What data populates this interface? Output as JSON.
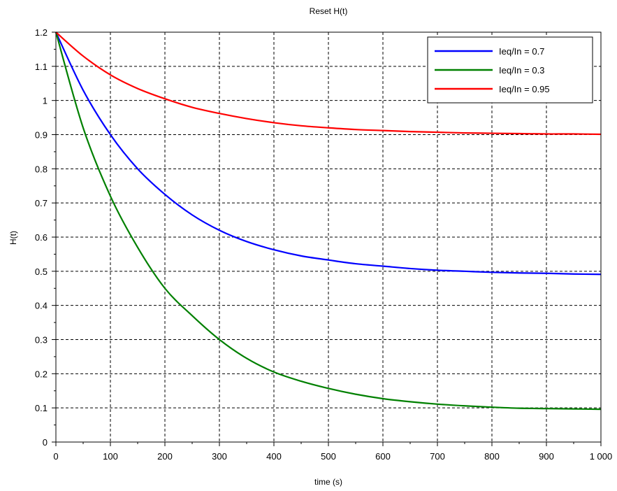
{
  "chart_data": {
    "type": "line",
    "title": "Reset H(t)",
    "xlabel": "time (s)",
    "ylabel": "H(t)",
    "xlim": [
      0,
      1000
    ],
    "ylim": [
      0,
      1.2
    ],
    "x_ticks": [
      0,
      100,
      200,
      300,
      400,
      500,
      600,
      700,
      800,
      900,
      1000
    ],
    "x_tick_labels": [
      "0",
      "100",
      "200",
      "300",
      "400",
      "500",
      "600",
      "700",
      "800",
      "900",
      "1 000"
    ],
    "y_ticks": [
      0,
      0.1,
      0.2,
      0.3,
      0.4,
      0.5,
      0.6,
      0.7,
      0.8,
      0.9,
      1,
      1.1,
      1.2
    ],
    "y_tick_labels": [
      "0",
      "0.1",
      "0.2",
      "0.3",
      "0.4",
      "0.5",
      "0.6",
      "0.7",
      "0.8",
      "0.9",
      "1",
      "1.1",
      "1.2"
    ],
    "grid": true,
    "grid_style": "dashed",
    "legend_position": "top-right",
    "x": [
      0,
      50,
      100,
      150,
      200,
      250,
      300,
      350,
      400,
      450,
      500,
      550,
      600,
      650,
      700,
      750,
      800,
      850,
      900,
      950,
      1000
    ],
    "series": [
      {
        "name": "Ieq/In = 0.7",
        "color": "#0000ff",
        "values": [
          1.2,
          1.03,
          0.9,
          0.8,
          0.725,
          0.665,
          0.62,
          0.587,
          0.563,
          0.545,
          0.533,
          0.522,
          0.515,
          0.508,
          0.503,
          0.5,
          0.497,
          0.495,
          0.494,
          0.492,
          0.491
        ]
      },
      {
        "name": "Ieq/In = 0.3",
        "color": "#008000",
        "values": [
          1.2,
          0.92,
          0.72,
          0.57,
          0.45,
          0.37,
          0.3,
          0.245,
          0.205,
          0.178,
          0.157,
          0.14,
          0.127,
          0.118,
          0.111,
          0.106,
          0.102,
          0.099,
          0.098,
          0.097,
          0.096
        ]
      },
      {
        "name": "Ieq/In = 0.95",
        "color": "#ff0000",
        "values": [
          1.2,
          1.13,
          1.075,
          1.035,
          1.005,
          0.98,
          0.962,
          0.947,
          0.935,
          0.926,
          0.92,
          0.915,
          0.912,
          0.909,
          0.907,
          0.905,
          0.904,
          0.903,
          0.902,
          0.902,
          0.901
        ]
      }
    ]
  }
}
